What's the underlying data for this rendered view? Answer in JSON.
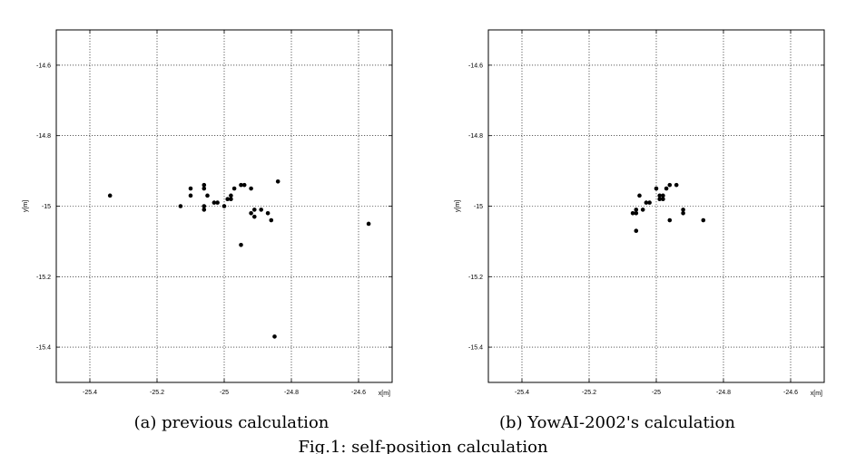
{
  "chart_data": [
    {
      "type": "scatter",
      "xlabel": "x[m]",
      "ylabel": "y[m]",
      "xlim": [
        -25.5,
        -24.5
      ],
      "ylim": [
        -15.5,
        -14.5
      ],
      "xticks": [
        -25.4,
        -25.2,
        -25,
        -24.8,
        -24.6
      ],
      "yticks": [
        -14.6,
        -14.8,
        -15,
        -15.2,
        -15.4
      ],
      "grid": true,
      "caption": "(a) previous calculation",
      "points": [
        [
          -25.34,
          -14.97
        ],
        [
          -25.13,
          -15.0
        ],
        [
          -25.1,
          -14.95
        ],
        [
          -25.1,
          -14.97
        ],
        [
          -25.06,
          -14.94
        ],
        [
          -25.06,
          -14.95
        ],
        [
          -25.05,
          -14.97
        ],
        [
          -25.06,
          -15.0
        ],
        [
          -25.06,
          -15.01
        ],
        [
          -25.03,
          -14.99
        ],
        [
          -25.02,
          -14.99
        ],
        [
          -25.0,
          -15.0
        ],
        [
          -24.99,
          -14.98
        ],
        [
          -24.98,
          -14.97
        ],
        [
          -24.98,
          -14.98
        ],
        [
          -24.97,
          -14.95
        ],
        [
          -24.95,
          -14.94
        ],
        [
          -24.94,
          -14.94
        ],
        [
          -24.92,
          -14.95
        ],
        [
          -24.92,
          -15.02
        ],
        [
          -24.91,
          -15.01
        ],
        [
          -24.91,
          -15.03
        ],
        [
          -24.89,
          -15.01
        ],
        [
          -24.87,
          -15.02
        ],
        [
          -24.86,
          -15.04
        ],
        [
          -24.84,
          -14.93
        ],
        [
          -24.95,
          -15.11
        ],
        [
          -24.85,
          -15.37
        ],
        [
          -24.57,
          -15.05
        ]
      ]
    },
    {
      "type": "scatter",
      "xlabel": "x[m]",
      "ylabel": "y[m]",
      "xlim": [
        -25.5,
        -24.5
      ],
      "ylim": [
        -15.5,
        -14.5
      ],
      "xticks": [
        -25.4,
        -25.2,
        -25,
        -24.8,
        -24.6
      ],
      "yticks": [
        -14.6,
        -14.8,
        -15,
        -15.2,
        -15.4
      ],
      "grid": true,
      "caption": "(b) YowAI-2002's calculation",
      "points": [
        [
          -25.05,
          -14.97
        ],
        [
          -25.06,
          -15.01
        ],
        [
          -25.06,
          -15.02
        ],
        [
          -25.07,
          -15.02
        ],
        [
          -25.06,
          -15.07
        ],
        [
          -25.04,
          -15.01
        ],
        [
          -25.03,
          -14.99
        ],
        [
          -25.02,
          -14.99
        ],
        [
          -25.0,
          -14.95
        ],
        [
          -24.99,
          -14.97
        ],
        [
          -24.99,
          -14.98
        ],
        [
          -24.98,
          -14.97
        ],
        [
          -24.98,
          -14.98
        ],
        [
          -24.97,
          -14.95
        ],
        [
          -24.96,
          -14.94
        ],
        [
          -24.94,
          -14.94
        ],
        [
          -24.96,
          -15.04
        ],
        [
          -24.92,
          -15.01
        ],
        [
          -24.92,
          -15.02
        ],
        [
          -24.86,
          -15.04
        ]
      ]
    }
  ],
  "figure_caption": "Fig.1: self-position calculation"
}
